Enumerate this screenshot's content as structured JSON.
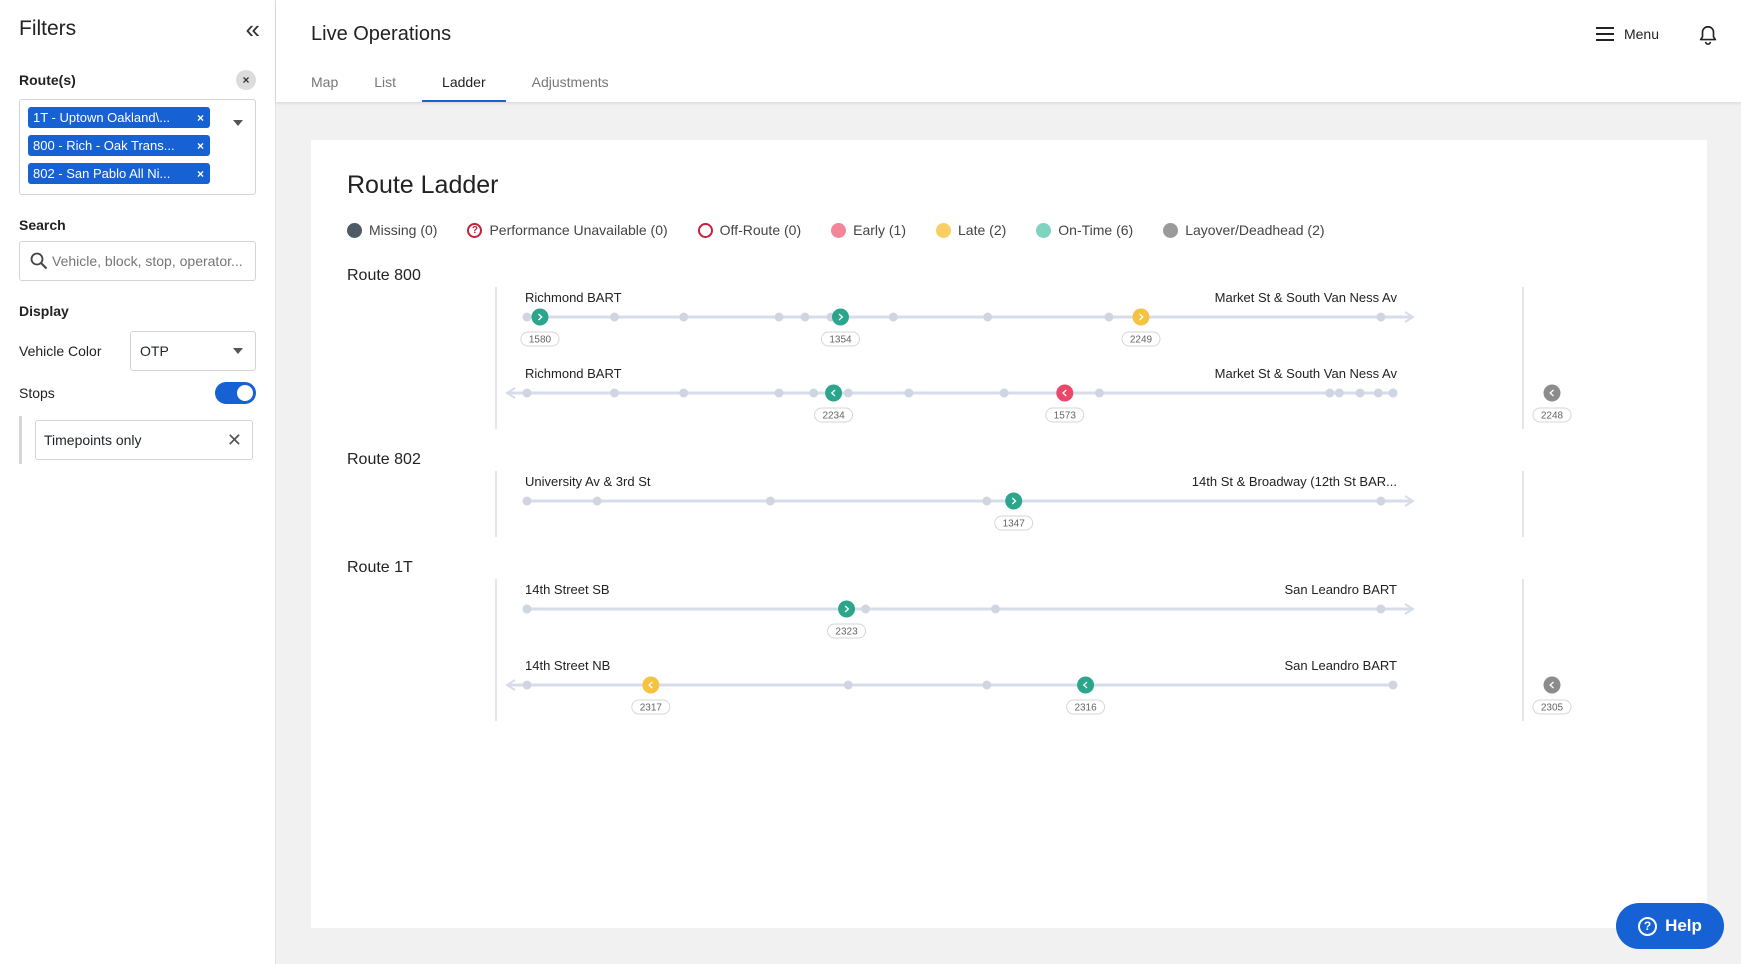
{
  "sidebar": {
    "title": "Filters",
    "routes_label": "Route(s)",
    "route_chips": [
      {
        "label": "1T - Uptown Oakland\\..."
      },
      {
        "label": "800 - Rich - Oak Trans..."
      },
      {
        "label": "802 - San Pablo All Ni..."
      }
    ],
    "chip_remove": "×",
    "clear_symbol": "×",
    "search_label": "Search",
    "search_placeholder": "Vehicle, block, stop, operator...",
    "display_label": "Display",
    "vehicle_color_label": "Vehicle Color",
    "vehicle_color_value": "OTP",
    "stops_label": "Stops",
    "stops_on": true,
    "stops_filter_value": "Timepoints only",
    "stops_filter_clear": "✕"
  },
  "header": {
    "title": "Live Operations",
    "tabs": [
      {
        "label": "Map",
        "active": false
      },
      {
        "label": "List",
        "active": false
      },
      {
        "label": "Ladder",
        "active": true
      },
      {
        "label": "Adjustments",
        "active": false
      }
    ],
    "menu_label": "Menu"
  },
  "main": {
    "title": "Route Ladder",
    "legend": [
      {
        "label": "Missing (0)",
        "kind": "dot",
        "color": "#4f5a64"
      },
      {
        "label": "Performance Unavailable (0)",
        "kind": "question",
        "color": "#c8203a"
      },
      {
        "label": "Off-Route (0)",
        "kind": "ring",
        "color": "#c8203a"
      },
      {
        "label": "Early (1)",
        "kind": "dot",
        "color": "#f3859a"
      },
      {
        "label": "Late (2)",
        "kind": "dot",
        "color": "#f9cf63"
      },
      {
        "label": "On-Time (6)",
        "kind": "dot",
        "color": "#7fd3c0"
      },
      {
        "label": "Layover/Deadhead (2)",
        "kind": "dot",
        "color": "#9a9a9a"
      }
    ],
    "colors": {
      "ontime": "#2ca58d",
      "late": "#f5c242",
      "early": "#e9486a",
      "layover": "#8c8c8c",
      "track": "#d7dde8",
      "stop": "#cfd6e2"
    },
    "routes": [
      {
        "name": "Route 800",
        "directions": [
          {
            "dir": "outbound",
            "start_label": "Richmond BART",
            "end_label": "Market St & South Van Ness Av",
            "stops": [
              0,
              0.101,
              0.181,
              0.291,
              0.321,
              0.351,
              0.423,
              0.532,
              0.672,
              0.986
            ],
            "vehicles": [
              {
                "id": "1580",
                "pos": 0.015,
                "status": "ontime"
              },
              {
                "id": "1354",
                "pos": 0.362,
                "status": "ontime"
              },
              {
                "id": "2249",
                "pos": 0.709,
                "status": "late"
              }
            ]
          },
          {
            "dir": "inbound",
            "start_label": "Richmond BART",
            "end_label": "Market St & South Van Ness Av",
            "stops": [
              0,
              0.101,
              0.181,
              0.291,
              0.331,
              0.371,
              0.441,
              0.551,
              0.661,
              0.927,
              0.938,
              0.962,
              0.983,
              1.0
            ],
            "vehicles": [
              {
                "id": "2234",
                "pos": 0.354,
                "status": "ontime"
              },
              {
                "id": "1573",
                "pos": 0.621,
                "status": "early"
              }
            ],
            "layover": {
              "id": "2248",
              "status": "layover"
            }
          }
        ]
      },
      {
        "name": "Route 802",
        "directions": [
          {
            "dir": "outbound",
            "start_label": "University Av & 3rd St",
            "end_label": "14th St & Broadway (12th St BAR...",
            "stops": [
              0,
              0.081,
              0.281,
              0.531,
              0.986
            ],
            "vehicles": [
              {
                "id": "1347",
                "pos": 0.562,
                "status": "ontime"
              }
            ]
          }
        ]
      },
      {
        "name": "Route 1T",
        "directions": [
          {
            "dir": "outbound",
            "start_label": "14th Street SB",
            "end_label": "San Leandro BART",
            "stops": [
              0,
              0.391,
              0.541,
              0.986
            ],
            "vehicles": [
              {
                "id": "2323",
                "pos": 0.369,
                "status": "ontime"
              }
            ]
          },
          {
            "dir": "inbound",
            "start_label": "14th Street NB",
            "end_label": "San Leandro BART",
            "stops": [
              0,
              0.371,
              0.531,
              1.0
            ],
            "vehicles": [
              {
                "id": "2317",
                "pos": 0.143,
                "status": "late"
              },
              {
                "id": "2316",
                "pos": 0.645,
                "status": "ontime"
              }
            ],
            "layover": {
              "id": "2305",
              "status": "layover"
            }
          }
        ]
      }
    ]
  },
  "help_label": "Help"
}
